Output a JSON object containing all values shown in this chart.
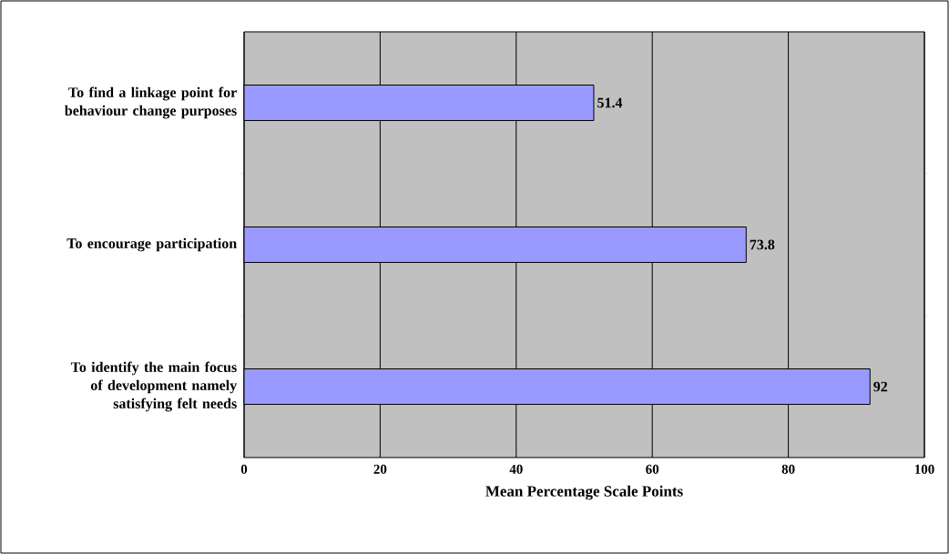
{
  "chart_data": {
    "type": "bar",
    "orientation": "horizontal",
    "categories": [
      "To find a linkage point for behaviour change purposes",
      "To encourage participation",
      "To identify the main focus of development namely satisfying felt needs"
    ],
    "values": [
      51.4,
      73.8,
      92
    ],
    "color": "#9999ff",
    "xlim": [
      0,
      100
    ],
    "xticks": [
      0,
      20,
      40,
      60,
      80,
      100
    ],
    "xlabel": "Mean Percentage Scale Points",
    "grid": "x",
    "data_labels": true
  }
}
